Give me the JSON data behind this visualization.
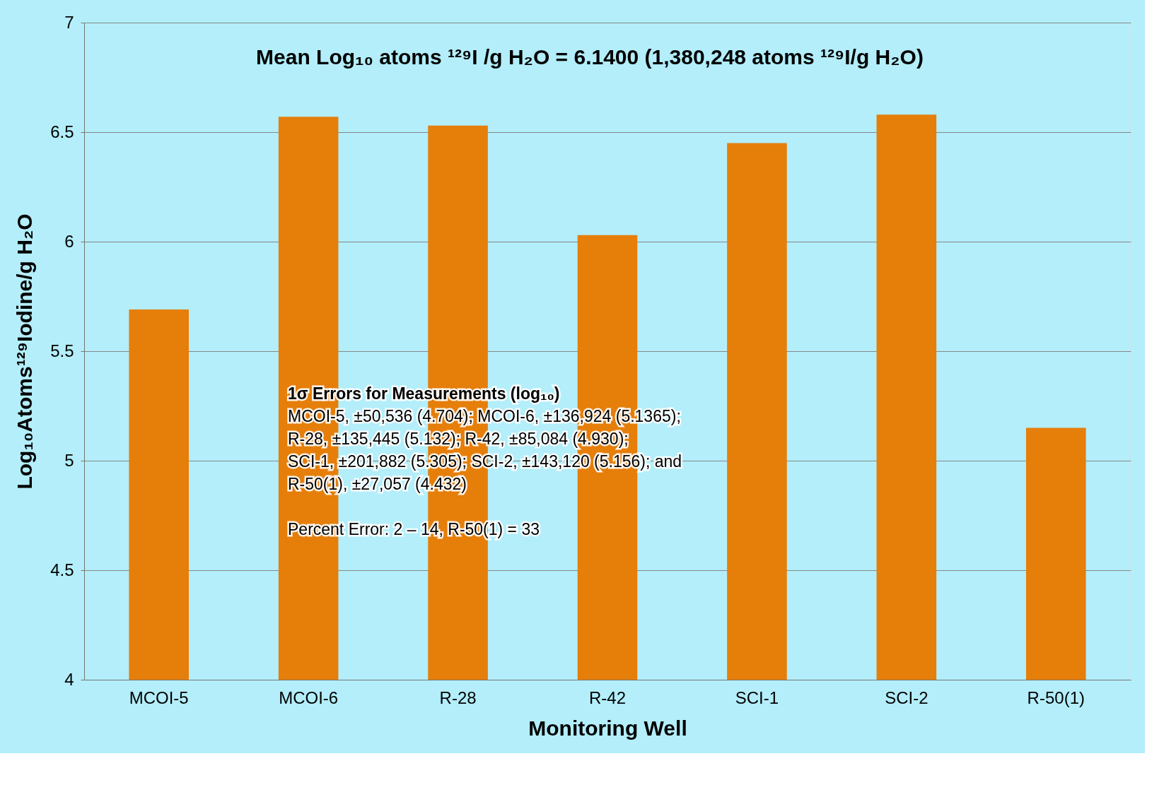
{
  "chart_data": {
    "type": "bar",
    "categories": [
      "MCOI-5",
      "MCOI-6",
      "R-28",
      "R-42",
      "SCI-1",
      "SCI-2",
      "R-50(1)"
    ],
    "values": [
      5.69,
      6.57,
      6.53,
      6.03,
      6.45,
      6.58,
      5.15
    ],
    "color": "#e67e0a",
    "xlabel": "Monitoring Well",
    "ylabel": "Log₁₀Atoms¹²⁹Iodine/g H₂O",
    "ylim": [
      4,
      7
    ],
    "yticks": [
      4,
      4.5,
      5,
      5.5,
      6,
      6.5,
      7
    ],
    "grid": "y",
    "annotations": [
      "Mean Log₁₀ atoms ¹²⁹I /g H₂O = 6.1400 (1,380,248 atoms ¹²⁹I/g H₂O)",
      "1σ Errors for Measurements (log₁₀)",
      "MCOI-5, ±50,536 (4.704); MCOI-6, ±136,924 (5.1365);",
      "R-28, ±135,445 (5.132); R-42, ±85,084 (4.930);",
      "SCI-1, ±201,882 (5.305); SCI-2, ±143,120 (5.156); and",
      "R-50(1), ±27,057 (4.432)",
      "Percent Error: 2 – 14, R-50(1) = 33"
    ]
  }
}
